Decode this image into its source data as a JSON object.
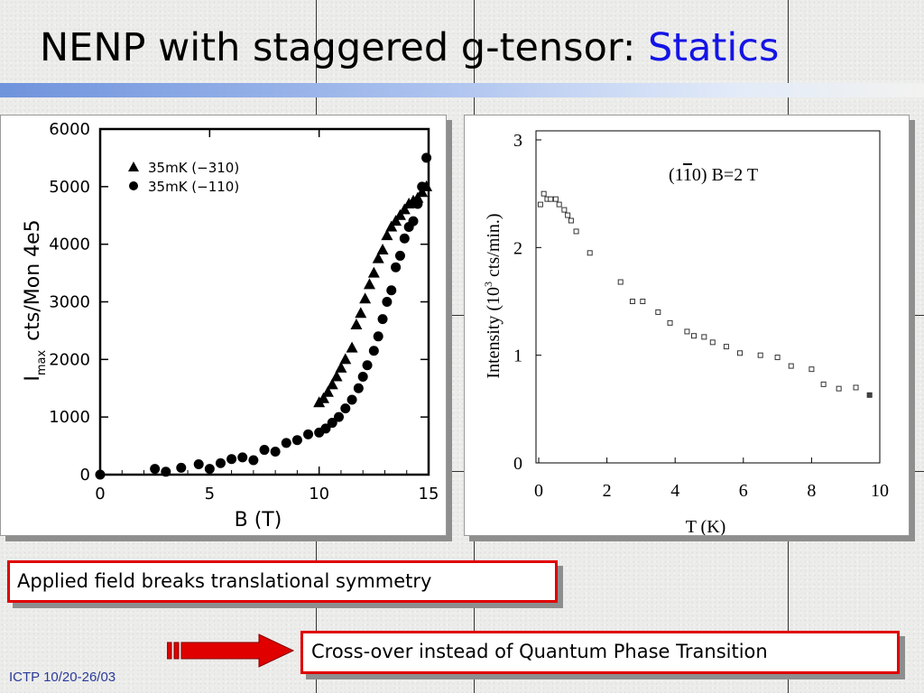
{
  "slide": {
    "title_main": "NENP with staggered g-tensor: ",
    "title_accent": "Statics",
    "callout_1": "Applied field breaks translational symmetry",
    "callout_2": "Cross-over instead of Quantum Phase Transition",
    "footer": "ICTP 10/20-26/03",
    "colors": {
      "accent": "#1414e6",
      "callout_border": "#e00000",
      "arrow": "#e00000"
    },
    "icons": [
      "striped-arrow-icon"
    ]
  },
  "chart_data": [
    {
      "type": "scatter",
      "ylabel_main": "I",
      "ylabel_sub": "max",
      "ylabel_rest": "cts/Mon  4e5",
      "xlabel": "B  (T)",
      "xlim": [
        0,
        15
      ],
      "ylim": [
        0,
        6000
      ],
      "xticks": [
        "0",
        "5",
        "10",
        "15"
      ],
      "yticks": [
        "0",
        "1000",
        "2000",
        "3000",
        "4000",
        "5000",
        "6000"
      ],
      "legend_position": "top-left",
      "series": [
        {
          "name": "35mK  (−310)",
          "marker": "triangle",
          "x": [
            10.0,
            10.2,
            10.4,
            10.6,
            10.8,
            11.0,
            11.2,
            11.5,
            11.7,
            11.9,
            12.1,
            12.3,
            12.5,
            12.7,
            12.9,
            13.1,
            13.3,
            13.5,
            13.7,
            13.9,
            14.1,
            14.3,
            14.5,
            14.7,
            14.9
          ],
          "y": [
            1250,
            1320,
            1430,
            1560,
            1700,
            1850,
            2000,
            2200,
            2600,
            2800,
            3050,
            3300,
            3500,
            3750,
            3900,
            4150,
            4300,
            4400,
            4500,
            4600,
            4700,
            4750,
            4800,
            4900,
            5000
          ]
        },
        {
          "name": "35mK  (−110)",
          "marker": "circle",
          "x": [
            0.0,
            2.5,
            3.0,
            3.7,
            4.5,
            5.0,
            5.5,
            6.0,
            6.5,
            7.0,
            7.5,
            8.0,
            8.5,
            9.0,
            9.5,
            10.0,
            10.3,
            10.6,
            10.9,
            11.2,
            11.5,
            11.8,
            12.0,
            12.2,
            12.5,
            12.7,
            12.9,
            13.1,
            13.3,
            13.5,
            13.7,
            13.9,
            14.1,
            14.3,
            14.5,
            14.7,
            14.9
          ],
          "y": [
            0,
            100,
            50,
            120,
            180,
            100,
            200,
            270,
            300,
            250,
            430,
            400,
            550,
            600,
            700,
            730,
            800,
            900,
            1000,
            1150,
            1300,
            1500,
            1700,
            1900,
            2150,
            2400,
            2700,
            3000,
            3200,
            3600,
            3800,
            4100,
            4300,
            4400,
            4700,
            5000,
            5500
          ]
        }
      ]
    },
    {
      "type": "scatter",
      "annotation": "(1",
      "annotation_bar": "1",
      "annotation_rest": "0)   B=2 T",
      "ylabel": "Intensity (10",
      "ylabel_sup": "3",
      "ylabel_rest": " cts/min.)",
      "xlabel": "T (K)",
      "xlim": [
        0,
        10
      ],
      "ylim": [
        0,
        3
      ],
      "xticks": [
        "0",
        "2",
        "4",
        "6",
        "8",
        "10"
      ],
      "yticks": [
        "0",
        "1",
        "2",
        "3"
      ],
      "series": [
        {
          "x": [
            0.05,
            0.15,
            0.25,
            0.35,
            0.5,
            0.6,
            0.75,
            0.85,
            0.95,
            1.1,
            1.5,
            2.4,
            2.75,
            3.05,
            3.5,
            3.85,
            4.35,
            4.55,
            4.85,
            5.1,
            5.5,
            5.9,
            6.5,
            7.0,
            7.4,
            8.0,
            8.35,
            8.8,
            9.3,
            9.7
          ],
          "y": [
            2.4,
            2.5,
            2.45,
            2.45,
            2.45,
            2.4,
            2.35,
            2.3,
            2.25,
            2.15,
            1.95,
            1.68,
            1.5,
            1.5,
            1.4,
            1.3,
            1.22,
            1.18,
            1.17,
            1.12,
            1.08,
            1.02,
            1.0,
            0.98,
            0.9,
            0.87,
            0.73,
            0.69,
            0.7,
            0.63
          ]
        }
      ]
    }
  ]
}
